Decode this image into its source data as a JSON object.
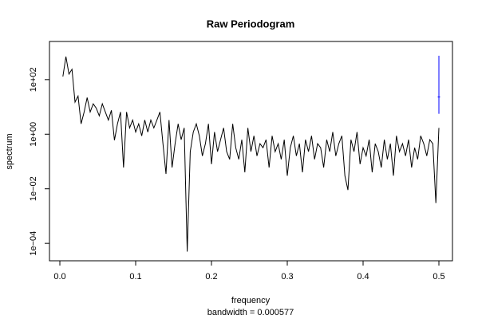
{
  "chart_data": {
    "type": "line",
    "title": "Raw Periodogram",
    "x_label": "frequency",
    "subtitle": "bandwidth = 0.000577",
    "y_label": "spectrum",
    "x": [
      0.004,
      0.008,
      0.012,
      0.016,
      0.02,
      0.024,
      0.028,
      0.032,
      0.036,
      0.04,
      0.044,
      0.048,
      0.052,
      0.056,
      0.06,
      0.064,
      0.068,
      0.072,
      0.076,
      0.08,
      0.084,
      0.088,
      0.092,
      0.096,
      0.1,
      0.104,
      0.108,
      0.112,
      0.116,
      0.12,
      0.124,
      0.128,
      0.132,
      0.136,
      0.14,
      0.144,
      0.148,
      0.152,
      0.156,
      0.16,
      0.164,
      0.168,
      0.172,
      0.176,
      0.18,
      0.184,
      0.188,
      0.192,
      0.196,
      0.2,
      0.204,
      0.208,
      0.212,
      0.216,
      0.22,
      0.224,
      0.228,
      0.232,
      0.236,
      0.24,
      0.244,
      0.248,
      0.252,
      0.256,
      0.26,
      0.264,
      0.268,
      0.272,
      0.276,
      0.28,
      0.284,
      0.288,
      0.292,
      0.296,
      0.3,
      0.304,
      0.308,
      0.312,
      0.316,
      0.32,
      0.324,
      0.328,
      0.332,
      0.336,
      0.34,
      0.344,
      0.348,
      0.352,
      0.356,
      0.36,
      0.364,
      0.368,
      0.372,
      0.376,
      0.38,
      0.384,
      0.388,
      0.392,
      0.396,
      0.4,
      0.404,
      0.408,
      0.412,
      0.416,
      0.42,
      0.424,
      0.428,
      0.432,
      0.436,
      0.44,
      0.444,
      0.448,
      0.452,
      0.456,
      0.46,
      0.464,
      0.468,
      0.472,
      0.476,
      0.48,
      0.484,
      0.488,
      0.492,
      0.496,
      0.5
    ],
    "series": [
      {
        "name": "spectrum",
        "color": "#000000",
        "values": [
          130,
          700,
          160,
          240,
          15,
          25,
          2.4,
          6.5,
          22,
          6.5,
          13,
          9,
          4.7,
          13,
          6.5,
          3.3,
          7.5,
          0.6,
          2.4,
          6.5,
          0.06,
          6.5,
          1.7,
          3.3,
          1.2,
          2.4,
          0.87,
          3.3,
          1.2,
          3.3,
          1.7,
          3.3,
          6.5,
          0.45,
          0.035,
          3.3,
          0.06,
          0.45,
          2.4,
          0.63,
          1.7,
          5e-05,
          0.23,
          1.2,
          2.4,
          0.87,
          0.16,
          0.45,
          2.4,
          0.08,
          1.2,
          0.23,
          0.63,
          1.7,
          0.23,
          0.12,
          2.4,
          0.32,
          0.12,
          0.63,
          0.04,
          1.7,
          0.23,
          0.87,
          0.16,
          0.45,
          0.32,
          0.63,
          0.06,
          0.87,
          0.23,
          0.45,
          0.12,
          0.63,
          0.03,
          0.32,
          0.87,
          0.16,
          0.45,
          0.04,
          0.63,
          0.23,
          0.87,
          0.12,
          0.45,
          0.32,
          0.06,
          0.63,
          0.23,
          1.2,
          0.16,
          0.45,
          0.87,
          0.03,
          0.009,
          0.63,
          0.23,
          1.2,
          0.08,
          0.32,
          0.16,
          0.63,
          0.04,
          0.45,
          0.23,
          0.06,
          0.63,
          0.12,
          0.45,
          0.03,
          0.87,
          0.23,
          0.45,
          0.16,
          0.63,
          0.06,
          0.32,
          0.12,
          0.87,
          0.45,
          0.16,
          0.63,
          0.45,
          0.003,
          1.7
        ]
      }
    ],
    "ci": {
      "color": "#0000ff",
      "x": 0.5,
      "lower": 5.6,
      "center": 23,
      "upper": 750
    },
    "log_y": true,
    "xlim": [
      -0.0137,
      0.5179
    ],
    "ylim": [
      2.3e-05,
      2500
    ],
    "xticks": [
      {
        "value": 0,
        "label": "0.0"
      },
      0.1,
      0.2,
      0.3,
      0.4,
      0.5
    ],
    "yticks": [
      {
        "value": 0.0001,
        "label": "1e−04"
      },
      {
        "value": 0.01,
        "label": "1e−02"
      },
      {
        "value": 1,
        "label": "1e+00"
      },
      {
        "value": 100,
        "label": "1e+02"
      }
    ]
  }
}
